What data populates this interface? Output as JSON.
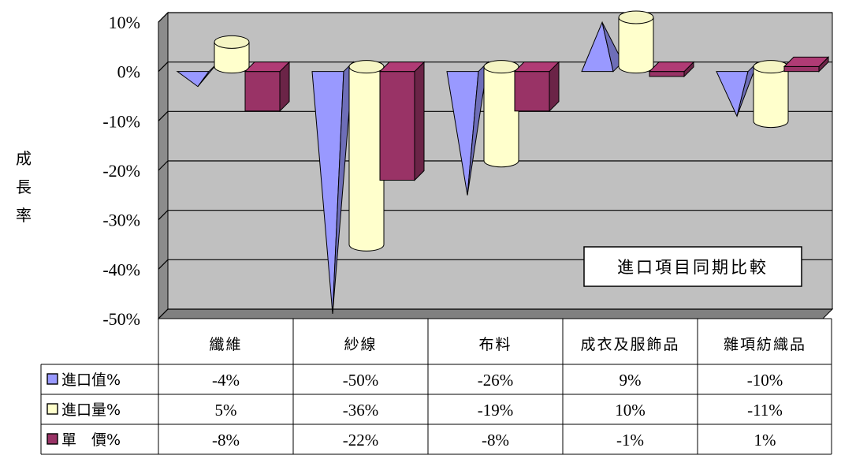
{
  "chart_data": {
    "type": "bar",
    "title": "進口項目同期比較",
    "ylabel": "成長率",
    "xlabel": "",
    "ylim": [
      -50,
      10
    ],
    "yticks": [
      "10%",
      "0%",
      "-10%",
      "-20%",
      "-30%",
      "-40%",
      "-50%"
    ],
    "categories": [
      "纖維",
      "紗線",
      "布料",
      "成衣及服飾品",
      "雜項紡織品"
    ],
    "series": [
      {
        "name": "進口值%",
        "shape": "pyramid",
        "color": "#9999ff",
        "values": [
          -4,
          -50,
          -26,
          9,
          -10
        ],
        "labels": [
          "-4%",
          "-50%",
          "-26%",
          "9%",
          "-10%"
        ]
      },
      {
        "name": "進口量%",
        "shape": "cylinder",
        "color": "#ffffcc",
        "values": [
          5,
          -36,
          -19,
          10,
          -11
        ],
        "labels": [
          "5%",
          "-36%",
          "-19%",
          "10%",
          "-11%"
        ]
      },
      {
        "name": "單　價%",
        "shape": "box",
        "color": "#993366",
        "values": [
          -8,
          -22,
          -8,
          -1,
          1
        ],
        "labels": [
          "-8%",
          "-22%",
          "-8%",
          "-1%",
          "1%"
        ]
      }
    ],
    "grid": true,
    "legend": "data-table"
  }
}
